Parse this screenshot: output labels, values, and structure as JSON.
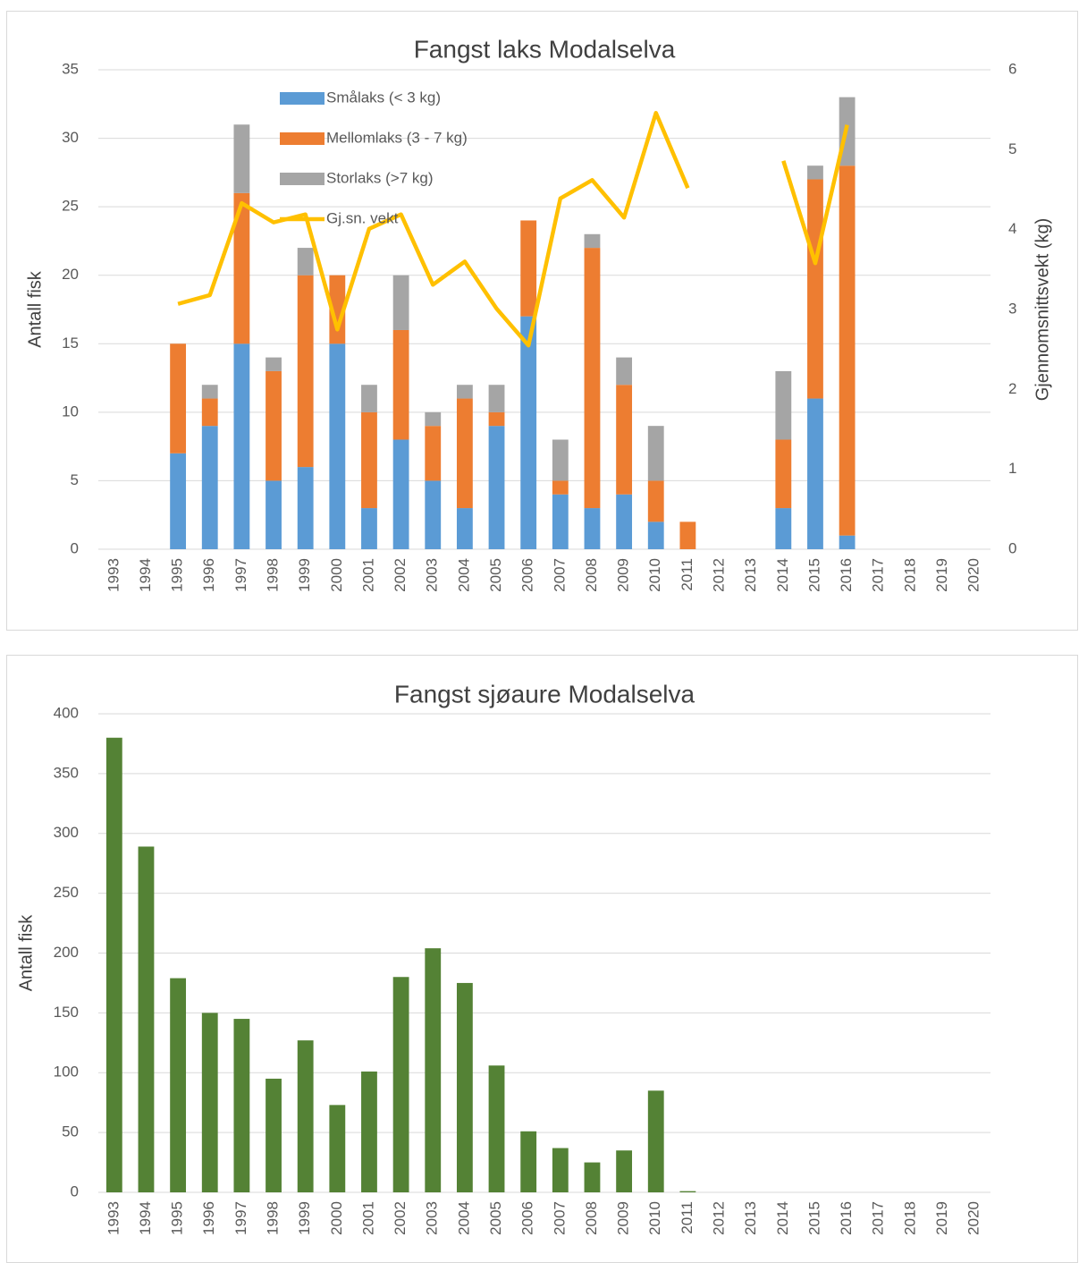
{
  "chart_data": [
    {
      "type": "bar",
      "stacked": true,
      "title": "Fangst laks Modalselva",
      "ylabel": "Antall fisk",
      "y2label": "Gjennomsnittsvekt (kg)",
      "categories": [
        "1993",
        "1994",
        "1995",
        "1996",
        "1997",
        "1998",
        "1999",
        "2000",
        "2001",
        "2002",
        "2003",
        "2004",
        "2005",
        "2006",
        "2007",
        "2008",
        "2009",
        "2010",
        "2011",
        "2012",
        "2013",
        "2014",
        "2015",
        "2016",
        "2017",
        "2018",
        "2019",
        "2020"
      ],
      "series": [
        {
          "name": "Smålaks (< 3 kg)",
          "color": "#5b9bd5",
          "values": [
            0,
            0,
            7,
            9,
            15,
            5,
            6,
            15,
            3,
            8,
            5,
            3,
            9,
            17,
            4,
            3,
            4,
            2,
            0,
            0,
            0,
            3,
            11,
            1,
            0,
            0,
            0,
            0
          ]
        },
        {
          "name": "Mellomlaks (3 - 7 kg)",
          "color": "#ed7d31",
          "values": [
            0,
            0,
            8,
            2,
            11,
            8,
            14,
            5,
            7,
            8,
            4,
            8,
            1,
            7,
            1,
            19,
            8,
            3,
            2,
            0,
            0,
            5,
            16,
            27,
            0,
            0,
            0,
            0
          ]
        },
        {
          "name": "Storlaks (>7 kg)",
          "color": "#a5a5a5",
          "values": [
            0,
            0,
            0,
            1,
            5,
            1,
            2,
            0,
            2,
            4,
            1,
            1,
            2,
            0,
            3,
            1,
            2,
            4,
            0,
            0,
            0,
            5,
            1,
            5,
            0,
            0,
            0,
            0
          ]
        },
        {
          "name": "Gj.sn. vekt",
          "color": "#ffc000",
          "type": "line",
          "axis": "y2",
          "values": [
            null,
            null,
            3.07,
            3.18,
            4.33,
            4.09,
            4.19,
            2.75,
            4.01,
            4.19,
            3.31,
            3.6,
            3.01,
            2.55,
            4.39,
            4.62,
            4.15,
            5.46,
            4.52,
            null,
            null,
            4.86,
            3.58,
            5.31,
            null,
            null,
            null,
            null
          ]
        }
      ],
      "ylim": [
        0,
        35
      ],
      "yticks": [
        0,
        5,
        10,
        15,
        20,
        25,
        30,
        35
      ],
      "y2lim": [
        0,
        6
      ],
      "y2ticks": [
        0,
        1,
        2,
        3,
        4,
        5,
        6
      ],
      "grid": true
    },
    {
      "type": "bar",
      "title": "Fangst sjøaure Modalselva",
      "ylabel": "Antall fisk",
      "color": "#548235",
      "categories": [
        "1993",
        "1994",
        "1995",
        "1996",
        "1997",
        "1998",
        "1999",
        "2000",
        "2001",
        "2002",
        "2003",
        "2004",
        "2005",
        "2006",
        "2007",
        "2008",
        "2009",
        "2010",
        "2011",
        "2012",
        "2013",
        "2014",
        "2015",
        "2016",
        "2017",
        "2018",
        "2019",
        "2020"
      ],
      "values": [
        380,
        289,
        179,
        150,
        145,
        95,
        127,
        73,
        101,
        180,
        204,
        175,
        106,
        51,
        37,
        25,
        35,
        85,
        1,
        0,
        0,
        0,
        0,
        0,
        0,
        0,
        0,
        0
      ],
      "ylim": [
        0,
        400
      ],
      "yticks": [
        0,
        50,
        100,
        150,
        200,
        250,
        300,
        350,
        400
      ],
      "grid": true
    }
  ]
}
